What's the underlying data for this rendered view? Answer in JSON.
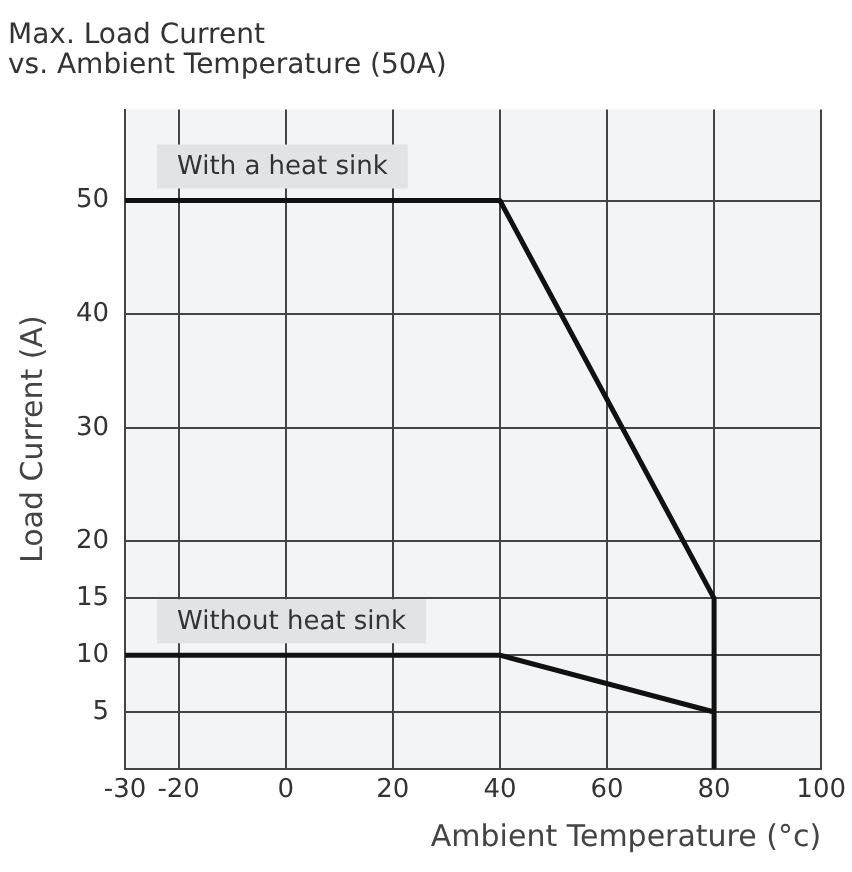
{
  "chart_data": {
    "type": "line",
    "title": "Max. Load Current\nvs. Ambient Temperature (50A)",
    "xlabel": "Ambient Temperature (°c)",
    "ylabel": "Load Current (A)",
    "xlim": [
      -30,
      100
    ],
    "xticks": [
      -30,
      -20,
      0,
      20,
      40,
      60,
      80,
      100
    ],
    "ylim": [
      0,
      58
    ],
    "yticks": [
      5,
      10,
      15,
      20,
      30,
      40,
      50
    ],
    "series": [
      {
        "name": "With a heat sink",
        "color": "#111111",
        "x": [
          -30,
          40,
          80,
          80
        ],
        "values": [
          50,
          50,
          15,
          0
        ]
      },
      {
        "name": "Without heat sink",
        "color": "#111111",
        "x": [
          -30,
          40,
          80
        ],
        "values": [
          10,
          10,
          5
        ]
      }
    ],
    "grid": true,
    "legend": false,
    "marker": "none",
    "line_style": "solid"
  }
}
